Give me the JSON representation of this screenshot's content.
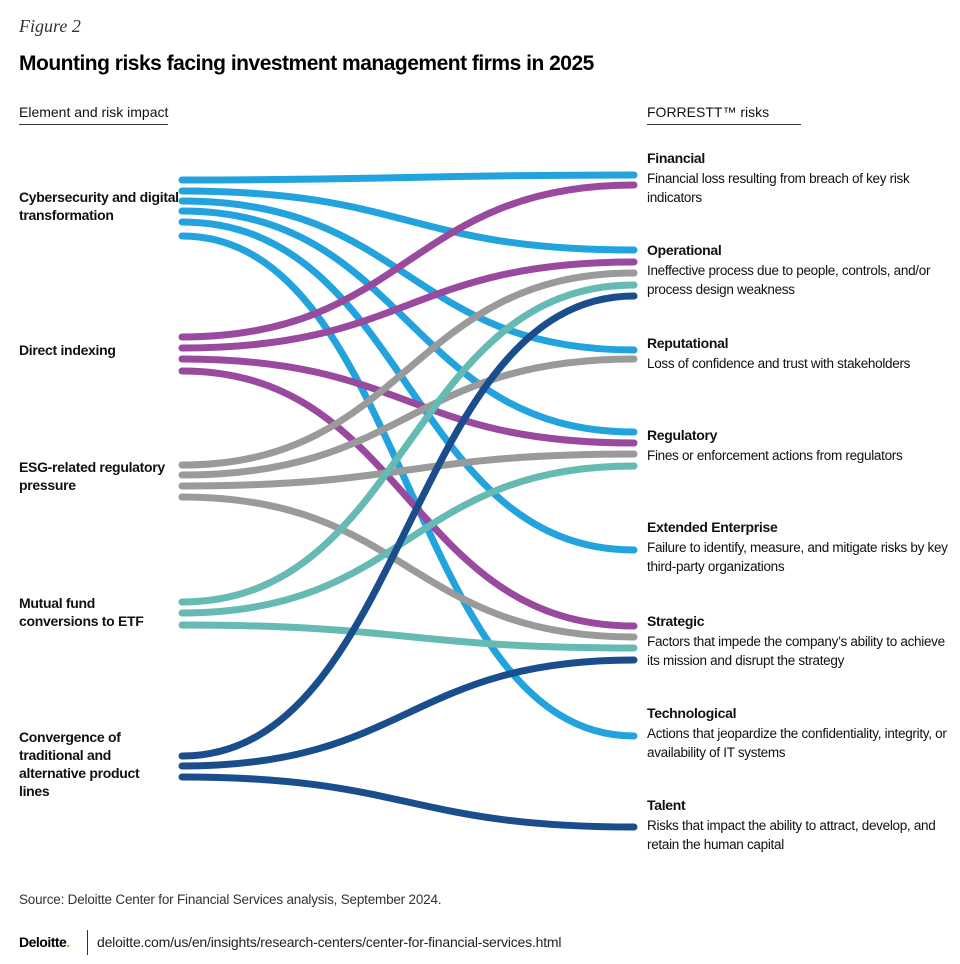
{
  "figure_label": "Figure 2",
  "title": "Mounting risks facing investment management firms in 2025",
  "left_header": "Element and risk impact",
  "right_header": "FORRESTT™ risks",
  "colors": {
    "cyber": "#22a3dd",
    "direct": "#9a4a9e",
    "esg": "#9a9a9a",
    "mutual": "#65bab4",
    "convergence": "#1a4d8c"
  },
  "elements": [
    {
      "id": "cyber",
      "label": "Cybersecurity and digital transformation"
    },
    {
      "id": "direct",
      "label": "Direct indexing"
    },
    {
      "id": "esg",
      "label": "ESG-related regulatory pressure"
    },
    {
      "id": "mutual",
      "label": "Mutual fund conversions to ETF"
    },
    {
      "id": "convergence",
      "label": "Convergence of traditional and alternative product lines"
    }
  ],
  "risks": [
    {
      "id": "financial",
      "name": "Financial",
      "description": "Financial loss resulting from breach of key risk indicators"
    },
    {
      "id": "operational",
      "name": "Operational",
      "description": "Ineffective process due to people, controls, and/or process design weakness"
    },
    {
      "id": "reputational",
      "name": "Reputational",
      "description": "Loss of confidence and trust with stakeholders"
    },
    {
      "id": "regulatory",
      "name": "Regulatory",
      "description": "Fines or enforcement actions from regulators"
    },
    {
      "id": "extended",
      "name": "Extended Enterprise",
      "description": "Failure to identify, measure, and mitigate risks by key third-party organizations"
    },
    {
      "id": "strategic",
      "name": "Strategic",
      "description": "Factors that impede the company’s ability to achieve its mission and disrupt the strategy"
    },
    {
      "id": "technological",
      "name": "Technological",
      "description": "Actions that jeopardize the confidentiality, integrity, or availability of IT systems"
    },
    {
      "id": "talent",
      "name": "Talent",
      "description": "Risks that impact the ability to attract, develop, and retain the human capital"
    }
  ],
  "links": [
    {
      "from": "cyber",
      "to": "financial"
    },
    {
      "from": "cyber",
      "to": "operational"
    },
    {
      "from": "cyber",
      "to": "reputational"
    },
    {
      "from": "cyber",
      "to": "regulatory"
    },
    {
      "from": "cyber",
      "to": "extended"
    },
    {
      "from": "cyber",
      "to": "technological"
    },
    {
      "from": "direct",
      "to": "financial"
    },
    {
      "from": "direct",
      "to": "operational"
    },
    {
      "from": "direct",
      "to": "regulatory"
    },
    {
      "from": "direct",
      "to": "strategic"
    },
    {
      "from": "esg",
      "to": "operational"
    },
    {
      "from": "esg",
      "to": "reputational"
    },
    {
      "from": "esg",
      "to": "regulatory"
    },
    {
      "from": "esg",
      "to": "strategic"
    },
    {
      "from": "mutual",
      "to": "operational"
    },
    {
      "from": "mutual",
      "to": "regulatory"
    },
    {
      "from": "mutual",
      "to": "strategic"
    },
    {
      "from": "convergence",
      "to": "operational"
    },
    {
      "from": "convergence",
      "to": "strategic"
    },
    {
      "from": "convergence",
      "to": "talent"
    }
  ],
  "source": "Source: Deloitte Center for Financial Services analysis, September 2024.",
  "brand": "Deloitte",
  "brand_dot": ".",
  "url": "deloitte.com/us/en/insights/research-centers/center-for-financial-services.html"
}
